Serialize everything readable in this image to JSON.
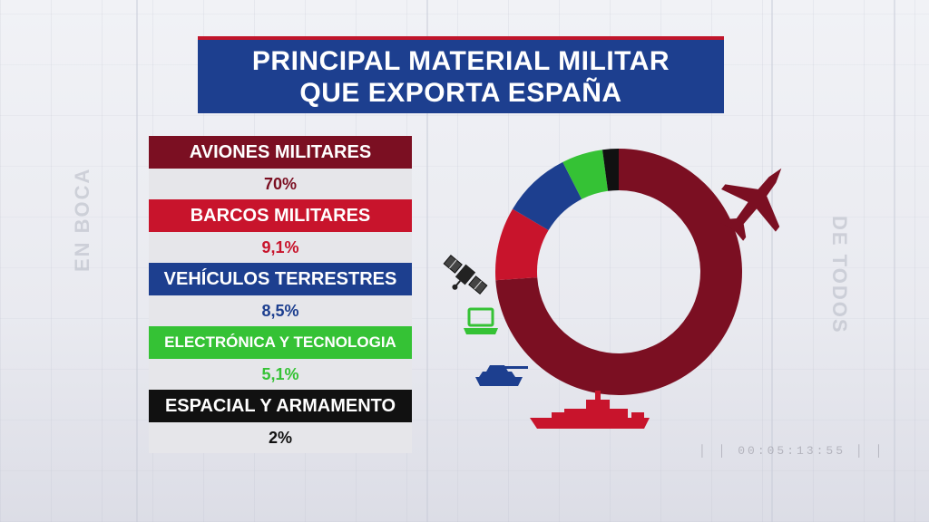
{
  "title": {
    "line1": "PRINCIPAL MATERIAL MILITAR",
    "line2": "QUE EXPORTA ESPAÑA"
  },
  "background": {
    "left_text": "EN BOCA",
    "right_text": "DE TODOS",
    "timecode": "00:05:13:55"
  },
  "colors": {
    "title_bg": "#1d3f8f",
    "title_accent": "#c0152b",
    "aviones": "#7b0f22",
    "barcos": "#c8142c",
    "vehiculos": "#1d3f8f",
    "electronica": "#35c235",
    "espacial": "#111111"
  },
  "icons": [
    "satellite-icon",
    "laptop-icon",
    "tank-icon",
    "warship-icon",
    "fighter-jet-icon"
  ],
  "chart_data": {
    "type": "pie",
    "donut": true,
    "categories": [
      "AVIONES MILITARES",
      "BARCOS MILITARES",
      "VEHÍCULOS TERRESTRES",
      "ELECTRÓNICA Y TECNOLOGIA",
      "ESPACIAL Y ARMAMENTO"
    ],
    "values": [
      70,
      9.1,
      8.5,
      5.1,
      2
    ],
    "value_labels": [
      "70%",
      "9,1%",
      "8,5%",
      "5,1%",
      "2%"
    ],
    "colors": [
      "#7b0f22",
      "#c8142c",
      "#1d3f8f",
      "#35c235",
      "#111111"
    ],
    "title": "PRINCIPAL MATERIAL MILITAR QUE EXPORTA ESPAÑA",
    "legend": "left"
  }
}
